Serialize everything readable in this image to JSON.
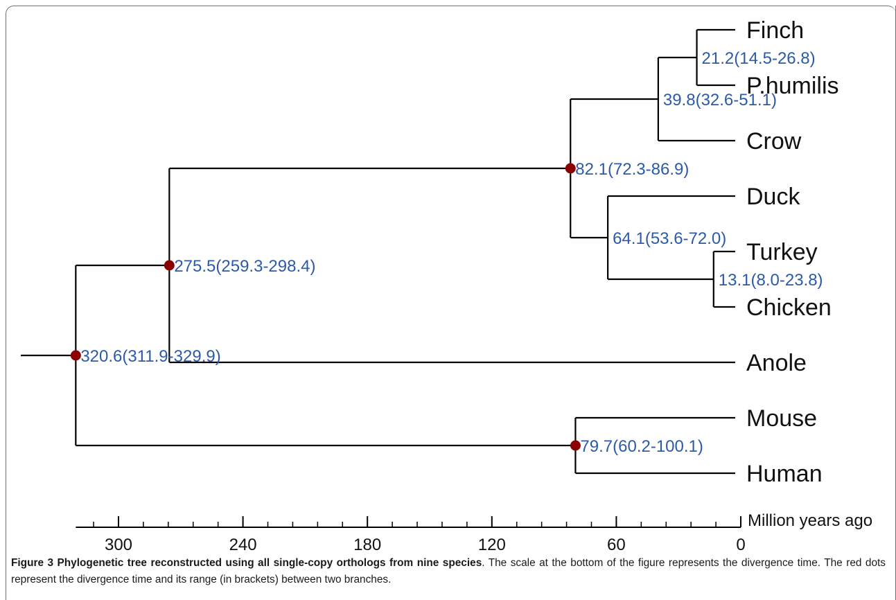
{
  "figure": {
    "caption_title": "Figure 3 Phylogenetic tree reconstructed using all single-copy orthologs from nine species",
    "caption_text": ". The scale at the bottom of the figure represents the divergence time. The red dots represent the divergence time and its range (in brackets) between two branches."
  },
  "colors": {
    "branch": "#000000",
    "node_dot": "#8b0000",
    "node_label": "#2d5aa8",
    "taxon": "#111111"
  },
  "chart_data": {
    "type": "phylogenetic-tree",
    "xlabel": "Million years ago",
    "xlim": [
      320.6,
      0
    ],
    "ticks": [
      300,
      240,
      180,
      120,
      60,
      0
    ],
    "taxa": [
      "Finch",
      "P.humilis",
      "Crow",
      "Duck",
      "Turkey",
      "Chicken",
      "Anole",
      "Mouse",
      "Human"
    ],
    "nodes": [
      {
        "id": "n1",
        "time": 320.6,
        "label": "320.6(311.9-329.9)",
        "dot": true,
        "children": [
          "n2",
          "n8"
        ]
      },
      {
        "id": "n2",
        "time": 275.5,
        "label": "275.5(259.3-298.4)",
        "dot": true,
        "children": [
          "n3",
          "Anole"
        ]
      },
      {
        "id": "n3",
        "time": 82.1,
        "label": "82.1(72.3-86.9)",
        "dot": true,
        "children": [
          "n4",
          "n6"
        ]
      },
      {
        "id": "n4",
        "time": 39.8,
        "label": "39.8(32.6-51.1)",
        "dot": false,
        "children": [
          "n5",
          "Crow"
        ]
      },
      {
        "id": "n5",
        "time": 21.2,
        "label": "21.2(14.5-26.8)",
        "dot": false,
        "children": [
          "Finch",
          "P.humilis"
        ]
      },
      {
        "id": "n6",
        "time": 64.1,
        "label": "64.1(53.6-72.0)",
        "dot": false,
        "children": [
          "Duck",
          "n7"
        ]
      },
      {
        "id": "n7",
        "time": 13.1,
        "label": "13.1(8.0-23.8)",
        "dot": false,
        "children": [
          "Turkey",
          "Chicken"
        ]
      },
      {
        "id": "n8",
        "time": 79.7,
        "label": "79.7(60.2-100.1)",
        "dot": true,
        "children": [
          "Mouse",
          "Human"
        ]
      }
    ]
  }
}
